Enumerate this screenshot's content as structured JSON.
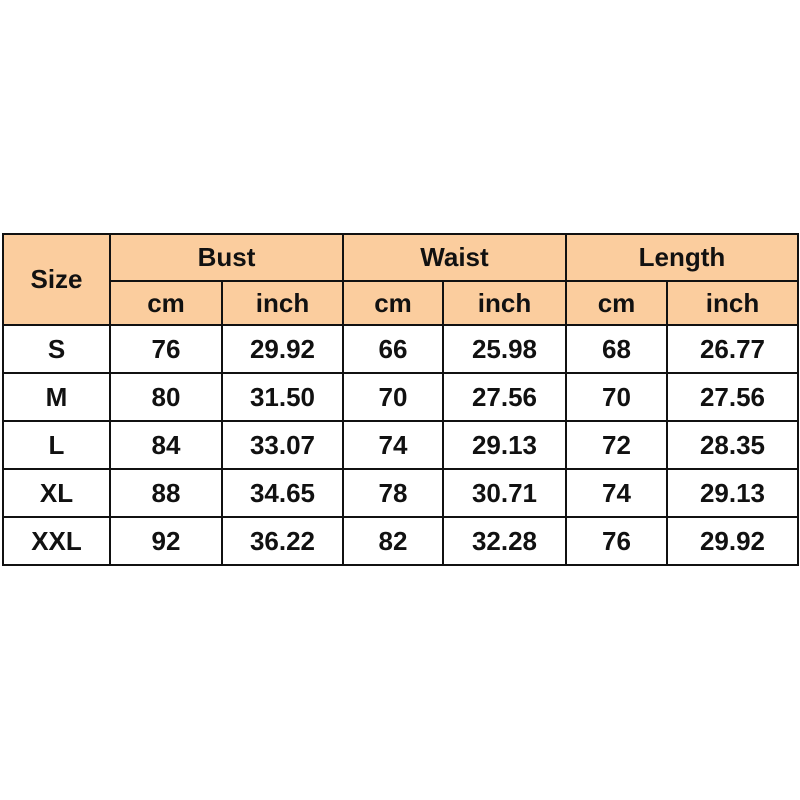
{
  "header": {
    "size_label": "Size",
    "groups": [
      "Bust",
      "Waist",
      "Length"
    ],
    "units": [
      "cm",
      "inch",
      "cm",
      "inch",
      "cm",
      "inch"
    ]
  },
  "rows": [
    {
      "size": "S",
      "values": [
        "76",
        "29.92",
        "66",
        "25.98",
        "68",
        "26.77"
      ]
    },
    {
      "size": "M",
      "values": [
        "80",
        "31.50",
        "70",
        "27.56",
        "70",
        "27.56"
      ]
    },
    {
      "size": "L",
      "values": [
        "84",
        "33.07",
        "74",
        "29.13",
        "72",
        "28.35"
      ]
    },
    {
      "size": "XL",
      "values": [
        "88",
        "34.65",
        "78",
        "30.71",
        "74",
        "29.13"
      ]
    },
    {
      "size": "XXL",
      "values": [
        "92",
        "36.22",
        "82",
        "32.28",
        "76",
        "29.92"
      ]
    }
  ],
  "colors": {
    "header_bg": "#FBCD9E",
    "border": "#111111"
  }
}
